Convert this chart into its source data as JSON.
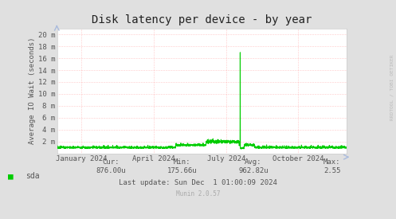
{
  "title": "Disk latency per device - by year",
  "ylabel": "Average IO Wait (seconds)",
  "bg_color": "#e0e0e0",
  "plot_bg_color": "#ffffff",
  "grid_color": "#ff9999",
  "line_color": "#00cc00",
  "yticks_labels": [
    "2 m",
    "4 m",
    "6 m",
    "8 m",
    "10 m",
    "12 m",
    "14 m",
    "16 m",
    "18 m",
    "20 m"
  ],
  "yticks_values": [
    0.002,
    0.004,
    0.006,
    0.008,
    0.01,
    0.012,
    0.014,
    0.016,
    0.018,
    0.02
  ],
  "ymax": 0.021,
  "ymin": 0.0,
  "xticklabels": [
    "January 2024",
    "April 2024",
    "July 2024",
    "October 2024"
  ],
  "xtick_positions": [
    0.0833,
    0.3333,
    0.5833,
    0.8333
  ],
  "legend_label": "sda",
  "legend_color": "#00cc00",
  "footer_cur_label": "Cur:",
  "footer_cur_val": "876.00u",
  "footer_min_label": "Min:",
  "footer_min_val": "175.66u",
  "footer_avg_label": "Avg:",
  "footer_avg_val": "962.82u",
  "footer_max_label": "Max:",
  "footer_max_val": "2.55",
  "footer_lastupdate": "Last update: Sun Dec  1 01:00:09 2024",
  "footer_munin": "Munin 2.0.57",
  "rrdtool_label": "RRDTOOL / TOBI OETIKER",
  "text_color": "#555555",
  "title_color": "#222222",
  "watermark_color": "#bbbbbb",
  "munin_color": "#aaaaaa"
}
